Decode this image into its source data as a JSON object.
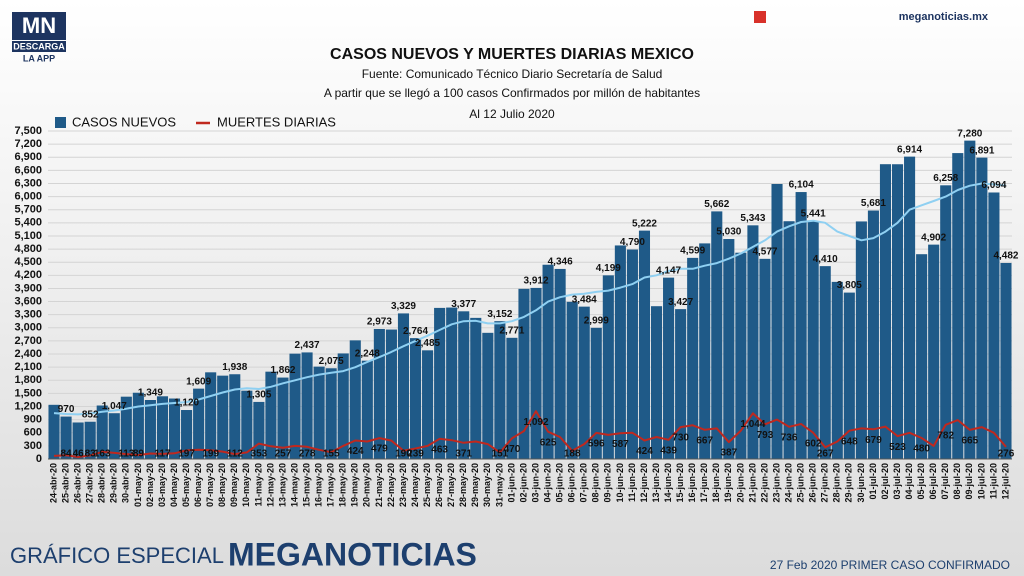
{
  "header": {
    "logo_main": "MN",
    "logo_sub": "DESCARGA",
    "logo_app": "LA APP",
    "site": "meganoticias.mx"
  },
  "footer": {
    "left": "GRÁFICO ESPECIAL",
    "brand": "MEGANOTICIAS",
    "note": "27 Feb 2020 PRIMER CASO CONFIRMADO"
  },
  "chart_data": {
    "type": "bar",
    "title": "CASOS NUEVOS Y MUERTES DIARIAS MEXICO",
    "subtitle": [
      "Fuente: Comunicado Técnico Diario Secretaría de Salud",
      "A partir que se llegó a 100 casos Confirmados por millón de habitantes",
      "Al 12 Julio 2020"
    ],
    "categories": [
      "24-abr-20",
      "25-abr-20",
      "26-abr-20",
      "27-abr-20",
      "28-abr-20",
      "29-abr-20",
      "30-abr-20",
      "01-may-20",
      "02-may-20",
      "03-may-20",
      "04-may-20",
      "05-may-20",
      "06-may-20",
      "07-may-20",
      "08-may-20",
      "09-may-20",
      "10-may-20",
      "11-may-20",
      "12-may-20",
      "13-may-20",
      "14-may-20",
      "15-may-20",
      "16-may-20",
      "17-may-20",
      "18-may-20",
      "19-may-20",
      "20-may-20",
      "21-may-20",
      "22-may-20",
      "23-may-20",
      "24-may-20",
      "25-may-20",
      "26-may-20",
      "27-may-20",
      "28-may-20",
      "29-may-20",
      "30-may-20",
      "31-may-20",
      "01-jun-20",
      "02-jun-20",
      "03-jun-20",
      "04-jun-20",
      "05-jun-20",
      "06-jun-20",
      "07-jun-20",
      "08-jun-20",
      "09-jun-20",
      "10-jun-20",
      "11-jun-20",
      "12-jun-20",
      "13-jun-20",
      "14-jun-20",
      "15-jun-20",
      "16-jun-20",
      "17-jun-20",
      "18-jun-20",
      "19-jun-20",
      "20-jun-20",
      "21-jun-20",
      "22-jun-20",
      "23-jun-20",
      "24-jun-20",
      "25-jun-20",
      "26-jun-20",
      "27-jun-20",
      "28-jun-20",
      "29-jun-20",
      "30-jun-20",
      "01-jul-20",
      "02-jul-20",
      "03-jul-20",
      "04-jul-20",
      "05-jul-20",
      "06-jul-20",
      "07-jul-20",
      "08-jul-20",
      "09-jul-20",
      "10-jul-20",
      "11-jul-20",
      "12-jul-20"
    ],
    "series": [
      {
        "name": "CASOS NUEVOS",
        "color": "#1f5a88",
        "values": [
          1239,
          970,
          835,
          852,
          1223,
          1047,
          1425,
          1515,
          1349,
          1434,
          1383,
          1120,
          1609,
          1982,
          1906,
          1938,
          1562,
          1305,
          1997,
          1862,
          2409,
          2437,
          2112,
          2075,
          2414,
          2713,
          2248,
          2973,
          2960,
          3329,
          2764,
          2485,
          3455,
          3463,
          3377,
          3227,
          2885,
          3152,
          2771,
          3891,
          3912,
          4442,
          4346,
          3593,
          3484,
          2999,
          4199,
          4883,
          4790,
          5222,
          3494,
          4147,
          3427,
          4599,
          4930,
          5662,
          5030,
          4717,
          5343,
          4577,
          6288,
          5437,
          6104,
          5441,
          4410,
          4050,
          3805,
          5432,
          5681,
          6741,
          6740,
          6914,
          4683,
          4902,
          6258,
          6995,
          7280,
          6891,
          6094,
          4482
        ],
        "value_labels": [
          null,
          "970",
          null,
          "852",
          null,
          "1,047",
          null,
          null,
          "1,349",
          null,
          null,
          "1,120",
          "1,609",
          null,
          null,
          "1,938",
          null,
          "1,305",
          null,
          "1,862",
          null,
          "2,437",
          null,
          "2,075",
          null,
          null,
          "2,248",
          "2,973",
          null,
          "3,329",
          "2,764",
          "2,485",
          null,
          null,
          "3,377",
          null,
          null,
          "3,152",
          "2,771",
          null,
          "3,912",
          null,
          "4,346",
          null,
          "3,484",
          "2,999",
          "4,199",
          null,
          "4,790",
          "5,222",
          null,
          "4,147",
          "3,427",
          "4,599",
          null,
          "5,662",
          "5,030",
          null,
          "5,343",
          "4,577",
          null,
          null,
          "6,104",
          "5,441",
          "4,410",
          null,
          "3,805",
          null,
          "5,681",
          null,
          null,
          "6,914",
          null,
          "4,902",
          "6,258",
          null,
          "7,280",
          "6,891",
          "6,094",
          "4,482"
        ]
      },
      {
        "name": "MUERTES DIARIAS",
        "type": "line",
        "color": "#c0281e",
        "values": [
          72,
          84,
          46,
          83,
          163,
          140,
          113,
          89,
          125,
          117,
          130,
          197,
          210,
          199,
          170,
          112,
          150,
          353,
          290,
          257,
          300,
          278,
          210,
          155,
          300,
          424,
          400,
          479,
          420,
          190,
          239,
          300,
          463,
          430,
          371,
          400,
          340,
          151,
          470,
          640,
          1092,
          625,
          500,
          188,
          341,
          596,
          550,
          587,
          600,
          424,
          504,
          439,
          730,
          770,
          667,
          700,
          387,
          650,
          1044,
          793,
          900,
          736,
          800,
          602,
          267,
          400,
          648,
          700,
          679,
          740,
          523,
          600,
          480,
          300,
          782,
          890,
          665,
          730,
          600,
          276
        ],
        "value_labels": [
          null,
          "84",
          "46",
          "83",
          "163",
          null,
          "113",
          "89",
          null,
          "117",
          null,
          "197",
          null,
          "199",
          null,
          "112",
          null,
          "353",
          null,
          "257",
          null,
          "278",
          null,
          "155",
          null,
          "424",
          null,
          "479",
          null,
          "190",
          "239",
          null,
          "463",
          null,
          "371",
          null,
          null,
          "151",
          "470",
          null,
          "1,092",
          "625",
          null,
          "188",
          null,
          "596",
          null,
          "587",
          null,
          "424",
          null,
          "439",
          "730",
          null,
          "667",
          null,
          "387",
          null,
          "1,044",
          "793",
          null,
          "736",
          null,
          "602",
          "267",
          null,
          "648",
          null,
          "679",
          null,
          "523",
          null,
          "480",
          null,
          "782",
          null,
          "665",
          null,
          null,
          "276"
        ]
      }
    ],
    "trend": {
      "color": "#8fd0f2",
      "values": [
        1050,
        1030,
        1020,
        1040,
        1080,
        1110,
        1150,
        1200,
        1230,
        1260,
        1280,
        1300,
        1360,
        1440,
        1520,
        1590,
        1620,
        1600,
        1650,
        1730,
        1800,
        1870,
        1930,
        1970,
        2010,
        2100,
        2220,
        2330,
        2450,
        2580,
        2700,
        2820,
        2950,
        3080,
        3150,
        3160,
        3100,
        3100,
        3150,
        3250,
        3400,
        3600,
        3700,
        3760,
        3780,
        3820,
        3850,
        3920,
        4000,
        4150,
        4200,
        4300,
        4350,
        4350,
        4420,
        4480,
        4580,
        4700,
        4850,
        5000,
        5200,
        5320,
        5420,
        5450,
        5400,
        5200,
        5100,
        5000,
        5050,
        5200,
        5400,
        5700,
        5800,
        5900,
        6000,
        6150,
        6250,
        6300,
        6280,
        6250
      ]
    },
    "ylim": [
      0,
      7500
    ],
    "yticks": [
      0,
      300,
      600,
      900,
      {
        "value": 1200,
        "label": "1,200"
      },
      {
        "value": 1500,
        "label": "1,500"
      },
      {
        "value": 1800,
        "label": "1,800"
      },
      {
        "value": 2100,
        "label": "2,100"
      },
      {
        "value": 2400,
        "label": "2,400"
      },
      {
        "value": 2700,
        "label": "2,700"
      },
      {
        "value": 3000,
        "label": "3,000"
      },
      {
        "value": 3300,
        "label": "3,300"
      },
      {
        "value": 3600,
        "label": "3,600"
      },
      {
        "value": 3900,
        "label": "3,900"
      },
      {
        "value": 4200,
        "label": "4,200"
      },
      {
        "value": 4500,
        "label": "4,500"
      },
      {
        "value": 4800,
        "label": "4,800"
      },
      {
        "value": 5100,
        "label": "5,100"
      },
      {
        "value": 5400,
        "label": "5,400"
      },
      {
        "value": 5700,
        "label": "5,700"
      },
      {
        "value": 6000,
        "label": "6,000"
      },
      {
        "value": 6300,
        "label": "6,300"
      },
      {
        "value": 6600,
        "label": "6,600"
      },
      {
        "value": 6900,
        "label": "6,900"
      },
      {
        "value": 7200,
        "label": "7,200"
      },
      {
        "value": 7500,
        "label": "7,500"
      }
    ],
    "grid": true
  }
}
